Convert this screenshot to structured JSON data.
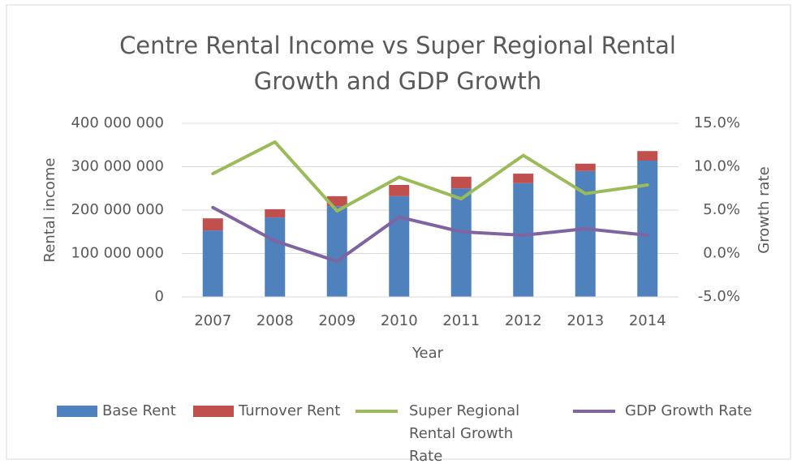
{
  "chart_data": {
    "type": "bar",
    "stacked": true,
    "title": "Centre Rental Income vs Super Regional Rental Growth and GDP Growth",
    "x_label": "Year",
    "y_label": "Rental income",
    "y2_label": "Growth rate",
    "categories": [
      "2007",
      "2008",
      "2009",
      "2010",
      "2011",
      "2012",
      "2013",
      "2014"
    ],
    "series": [
      {
        "name": "Base Rent",
        "type": "bar",
        "color": "#4f81bd",
        "values": [
          153000000,
          183000000,
          209000000,
          232000000,
          250000000,
          262000000,
          290000000,
          314000000
        ]
      },
      {
        "name": "Turnover Rent",
        "type": "bar",
        "color": "#c0504d",
        "values": [
          28000000,
          19000000,
          23000000,
          26000000,
          27000000,
          22000000,
          17000000,
          22000000
        ]
      },
      {
        "name": "Super Regional Rental Growth Rate",
        "type": "line",
        "axis": "y2",
        "color": "#9bbb59",
        "values": [
          9.2,
          12.85,
          4.9,
          8.8,
          6.3,
          11.3,
          6.9,
          7.9
        ]
      },
      {
        "name": "GDP Growth Rate",
        "type": "line",
        "axis": "y2",
        "color": "#8064a2",
        "values": [
          5.3,
          1.45,
          -0.9,
          4.2,
          2.5,
          2.1,
          2.85,
          2.1
        ]
      }
    ],
    "ylim": [
      0,
      400000000
    ],
    "yticks": [
      0,
      {
        "value": 100000000,
        "label": "100 000 000"
      },
      {
        "value": 200000000,
        "label": "200 000 000"
      },
      {
        "value": 300000000,
        "label": "300 000 000"
      },
      {
        "value": 400000000,
        "label": "400 000 000"
      }
    ],
    "y2lim": [
      -5,
      15
    ],
    "y2ticks": [
      {
        "value": -5,
        "label": "-5.0%"
      },
      {
        "value": 0,
        "label": "0.0%"
      },
      {
        "value": 5,
        "label": "5.0%"
      },
      {
        "value": 10,
        "label": "10.0%"
      },
      {
        "value": 15,
        "label": "15.0%"
      }
    ],
    "grid": true,
    "legend": "bottom"
  }
}
